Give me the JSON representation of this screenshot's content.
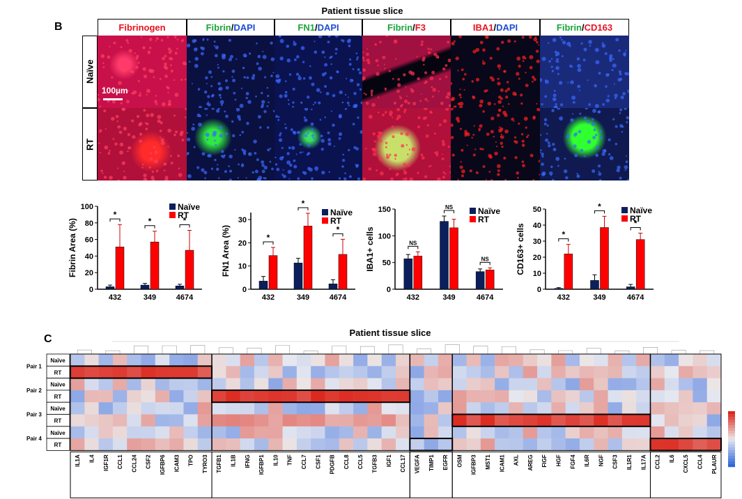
{
  "panel_b": {
    "letter": "B",
    "title": "Patient tissue slice",
    "columns": [
      {
        "parts": [
          {
            "t": "Fibrinogen",
            "c": "#e8121e"
          }
        ]
      },
      {
        "parts": [
          {
            "t": "Fibrin",
            "c": "#1aa53a"
          },
          {
            "t": "/",
            "c": "#000"
          },
          {
            "t": "DAPI",
            "c": "#1c4fd8"
          }
        ]
      },
      {
        "parts": [
          {
            "t": "FN1",
            "c": "#1aa53a"
          },
          {
            "t": "/",
            "c": "#000"
          },
          {
            "t": "DAPI",
            "c": "#1c4fd8"
          }
        ]
      },
      {
        "parts": [
          {
            "t": "Fibrin",
            "c": "#1aa53a"
          },
          {
            "t": "/",
            "c": "#000"
          },
          {
            "t": "F3",
            "c": "#e8121e"
          }
        ]
      },
      {
        "parts": [
          {
            "t": "IBA1",
            "c": "#e8121e"
          },
          {
            "t": "/",
            "c": "#000"
          },
          {
            "t": "DAPI",
            "c": "#1c4fd8"
          }
        ]
      },
      {
        "parts": [
          {
            "t": "Fibrin",
            "c": "#1aa53a"
          },
          {
            "t": "/",
            "c": "#000"
          },
          {
            "t": "CD163",
            "c": "#e8121e"
          }
        ]
      }
    ],
    "rows": [
      "Naïve",
      "RT"
    ],
    "scale_bar": "100µm"
  },
  "charts": {
    "chart_data": [
      {
        "type": "bar",
        "ylabel": "Fibrin Area (%)",
        "ylim": [
          0,
          100
        ],
        "yticks": [
          0,
          20,
          40,
          60,
          80,
          100
        ],
        "categories": [
          "432",
          "349",
          "4674"
        ],
        "series": [
          {
            "name": "Naïve",
            "color": "#0b1f5c",
            "values": [
              3,
              5,
              4
            ],
            "err": [
              2,
              2,
              2
            ]
          },
          {
            "name": "RT",
            "color": "#ff0000",
            "values": [
              51,
              57,
              47
            ],
            "err": [
              27,
              13,
              24
            ]
          }
        ],
        "significance": [
          "*",
          "*",
          "*"
        ]
      },
      {
        "type": "bar",
        "ylabel": "FN1 Area (%)",
        "ylim": [
          0,
          33
        ],
        "yticks": [
          0,
          10,
          20,
          30
        ],
        "categories": [
          "432",
          "349",
          "4674"
        ],
        "series": [
          {
            "name": "Naïve",
            "color": "#0b1f5c",
            "values": [
              3.5,
              11.3,
              2.3
            ],
            "err": [
              2,
              2,
              1.8
            ]
          },
          {
            "name": "RT",
            "color": "#ff0000",
            "values": [
              14.5,
              27.2,
              15
            ],
            "err": [
              3.5,
              5.5,
              6.5
            ]
          }
        ],
        "significance": [
          "*",
          "*",
          "*"
        ]
      },
      {
        "type": "bar",
        "ylabel": "IBA1+ cells",
        "ylim": [
          0,
          150
        ],
        "yticks": [
          0,
          50,
          100,
          150
        ],
        "categories": [
          "432",
          "349",
          "4674"
        ],
        "series": [
          {
            "name": "Naïve",
            "color": "#0b1f5c",
            "values": [
              57,
              127,
              33
            ],
            "err": [
              8,
              10,
              5
            ]
          },
          {
            "name": "RT",
            "color": "#ff0000",
            "values": [
              62,
              115,
              36
            ],
            "err": [
              8,
              16,
              4
            ]
          }
        ],
        "significance": [
          "NS",
          "NS",
          "NS"
        ]
      },
      {
        "type": "bar",
        "ylabel": "CD163+ cells",
        "ylim": [
          0,
          50
        ],
        "yticks": [
          0,
          10,
          20,
          30,
          40,
          50
        ],
        "categories": [
          "432",
          "349",
          "4674"
        ],
        "series": [
          {
            "name": "Naïve",
            "color": "#0b1f5c",
            "values": [
              0.5,
              5.5,
              1.5
            ],
            "err": [
              0.5,
              3.5,
              1.5
            ]
          },
          {
            "name": "RT",
            "color": "#ff0000",
            "values": [
              22,
              38.5,
              31
            ],
            "err": [
              6,
              7,
              4
            ]
          }
        ],
        "significance": [
          "*",
          "*",
          "*"
        ]
      }
    ]
  },
  "panel_c": {
    "letter": "C",
    "title": "Patient tissue slice",
    "pairs": [
      "Pair 1",
      "Pair 2",
      "Pair 3",
      "Pair 4"
    ],
    "row_labels": [
      "Naïve",
      "RT",
      "Naïve",
      "RT",
      "Naïve",
      "RT",
      "Naïve",
      "RT"
    ],
    "gene_groups": [
      [
        "IL1A",
        "IL4",
        "IGF1R",
        "CCL1",
        "CCL24",
        "CSF2",
        "IGFBP6",
        "ICAM3",
        "TPO",
        "TYRO3"
      ],
      [
        "TGFB1",
        "IL1B",
        "IFNG",
        "IGFBP1",
        "IL10",
        "TNF",
        "CCL7",
        "CSF1",
        "PDGFB",
        "CCL8",
        "CCL5",
        "TGFB3",
        "IGF1",
        "CCL17"
      ],
      [
        "VEGFA",
        "TIMP1",
        "EGFR"
      ],
      [
        "OSM",
        "IGFBP3",
        "MST1",
        "ICAM1",
        "AXL",
        "AREG",
        "FIGF",
        "HGF",
        "FGF4",
        "IL6R",
        "NGF",
        "CSF3",
        "IL1R1",
        "IL17A"
      ],
      [
        "CCL2",
        "IL6",
        "CXCL5",
        "CCL4",
        "PLAUR"
      ]
    ]
  }
}
